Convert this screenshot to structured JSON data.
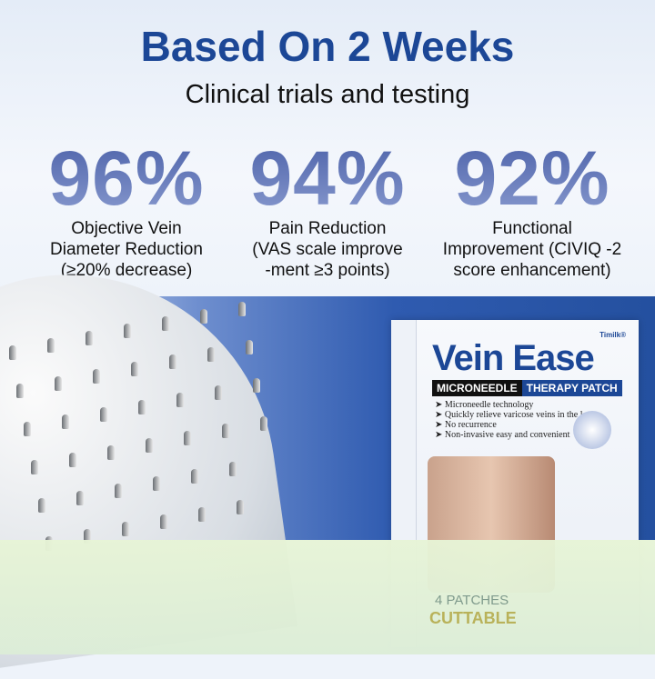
{
  "header": {
    "title": "Based On 2 Weeks",
    "subtitle": "Clinical trials and testing"
  },
  "stats": [
    {
      "value": "96%",
      "lines": [
        "Objective Vein",
        "Diameter Reduction",
        "(≥20% decrease)"
      ]
    },
    {
      "value": "94%",
      "lines": [
        "Pain Reduction",
        "(VAS scale improve",
        "-ment ≥3 points)"
      ]
    },
    {
      "value": "92%",
      "lines": [
        "Functional",
        "Improvement (CIVIQ -2",
        "score enhancement)"
      ]
    }
  ],
  "product": {
    "brand": "Timilk®",
    "name": "Vein Ease",
    "ribbon_left": "MICRONEEDLE",
    "ribbon_right": "THERAPY PATCH",
    "bullets": [
      "Microneedle technology",
      "Quickly relieve varicose veins in the legs",
      "No recurrence",
      "Non-invasive easy and convenient"
    ],
    "count": "4 PATCHES",
    "cuttable": "CUTTABLE"
  },
  "colors": {
    "title": "#1c4796",
    "percent": "#5a70b0",
    "band": "#2f5bb0",
    "overlay": "#e7f4d6"
  }
}
